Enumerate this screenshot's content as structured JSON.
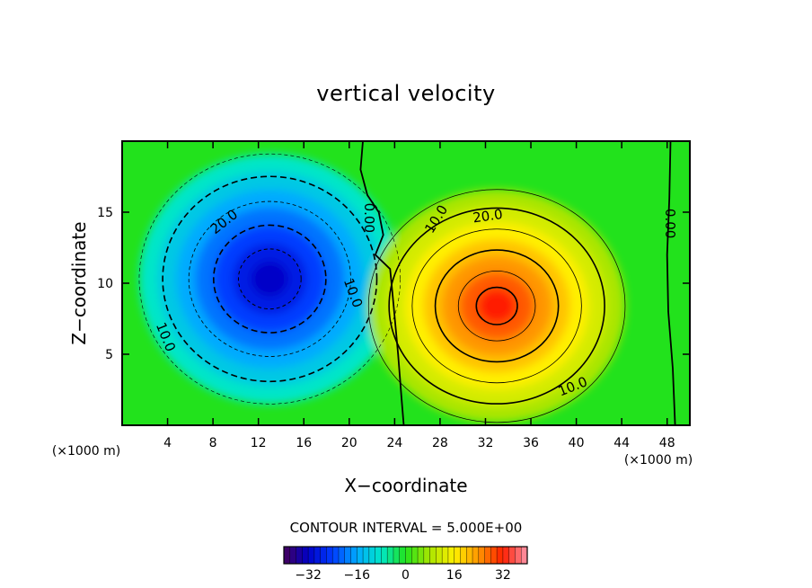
{
  "chart_data": {
    "type": "heatmap",
    "title": "vertical velocity",
    "xlabel": "X−coordinate",
    "ylabel": "Z−coordinate",
    "x_unit": "(×1000 m)",
    "x_unit_right": "(×1000 m)",
    "xlim": [
      0,
      50
    ],
    "ylim": [
      0,
      20
    ],
    "x_ticks": [
      4,
      8,
      12,
      16,
      20,
      24,
      28,
      32,
      36,
      40,
      44,
      48
    ],
    "x_tick_labels": [
      "4",
      "8",
      "12",
      "16",
      "20",
      "24",
      "28",
      "32",
      "36",
      "40",
      "44",
      "48"
    ],
    "y_ticks": [
      5,
      10,
      15
    ],
    "y_tick_labels": [
      "5",
      "10",
      "15"
    ],
    "contour_interval_text": "CONTOUR INTERVAL = 5.000E+00",
    "contour_interval": 5.0,
    "features": [
      {
        "name": "downdraft",
        "center": [
          13,
          10
        ],
        "min_value": -32
      },
      {
        "name": "updraft",
        "center": [
          33,
          8.5
        ],
        "max_value": 32
      }
    ],
    "contour_labels": [
      {
        "text": "20.0",
        "x": 9.0,
        "y": 14.3,
        "rotate": -38
      },
      {
        "text": "10.0",
        "x": 20.3,
        "y": 9.3,
        "rotate": 70
      },
      {
        "text": "10.0",
        "x": 3.8,
        "y": 6.2,
        "rotate": 68
      },
      {
        "text": "0.00",
        "x": 21.7,
        "y": 14.6,
        "rotate": 90
      },
      {
        "text": "10.0",
        "x": 27.7,
        "y": 14.5,
        "rotate": -58
      },
      {
        "text": "20.0",
        "x": 32.2,
        "y": 14.7,
        "rotate": -8
      },
      {
        "text": "10.0",
        "x": 39.7,
        "y": 2.7,
        "rotate": -22
      },
      {
        "text": "0.00",
        "x": 48.2,
        "y": 14.2,
        "rotate": 90
      }
    ],
    "colorbar": {
      "min": -40,
      "max": 40,
      "ticks": [
        -32,
        -16,
        0,
        16,
        32
      ],
      "tick_labels": [
        "−32",
        "−16",
        "0",
        "16",
        "32"
      ]
    }
  }
}
